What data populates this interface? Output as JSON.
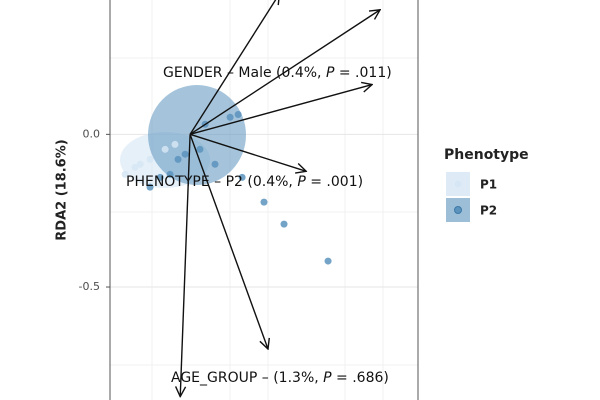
{
  "chart_data": {
    "type": "scatter",
    "y_label": "RDA2 (18.6%)",
    "ylim": [
      -0.87,
      0.44
    ],
    "xlim": [
      -0.26,
      0.74
    ],
    "yticks": [
      {
        "value": 0,
        "label": "0.0"
      },
      -0.5
    ],
    "grid": true,
    "legend_title": "Phenotype",
    "legend_position": "right",
    "series": [
      {
        "name": "P1",
        "color": "#d6e6f5",
        "x": [
          -0.179,
          -0.211,
          -0.13,
          -0.162,
          -0.081,
          -0.049
        ],
        "values": [
          -0.108,
          -0.131,
          -0.082,
          -0.098,
          -0.049,
          -0.033
        ]
      },
      {
        "name": "P2",
        "color": "#5b93bd",
        "x": [
          0.24,
          0.305,
          0.448,
          0.169,
          0.13,
          0.156,
          0.081,
          0.032,
          -0.016,
          -0.039,
          -0.065,
          -0.097,
          -0.13,
          0.049
        ],
        "values": [
          -0.222,
          -0.294,
          -0.415,
          -0.141,
          0.056,
          0.065,
          -0.098,
          -0.049,
          -0.065,
          -0.082,
          -0.131,
          -0.141,
          -0.173,
          0.033
        ]
      }
    ],
    "arrows": [
      {
        "x": 0.29,
        "y": 0.46
      },
      {
        "x": 0.617,
        "y": 0.408
      },
      {
        "x": 0.591,
        "y": 0.163
      },
      {
        "x": 0.377,
        "y": -0.121
      },
      {
        "x": 0.253,
        "y": -0.703
      },
      {
        "x": -0.032,
        "y": -0.859
      }
    ],
    "annotations": [
      {
        "text": [
          "GENDER – Male (0.4%, ",
          "P",
          " = .011)"
        ]
      },
      {
        "text": [
          "PHENOTYPE – P2 (0.4%, ",
          "P",
          " = .001)"
        ]
      },
      {
        "text": [
          "AGE_GROUP –  (1.3%, ",
          "P",
          " = .686)"
        ]
      }
    ]
  }
}
